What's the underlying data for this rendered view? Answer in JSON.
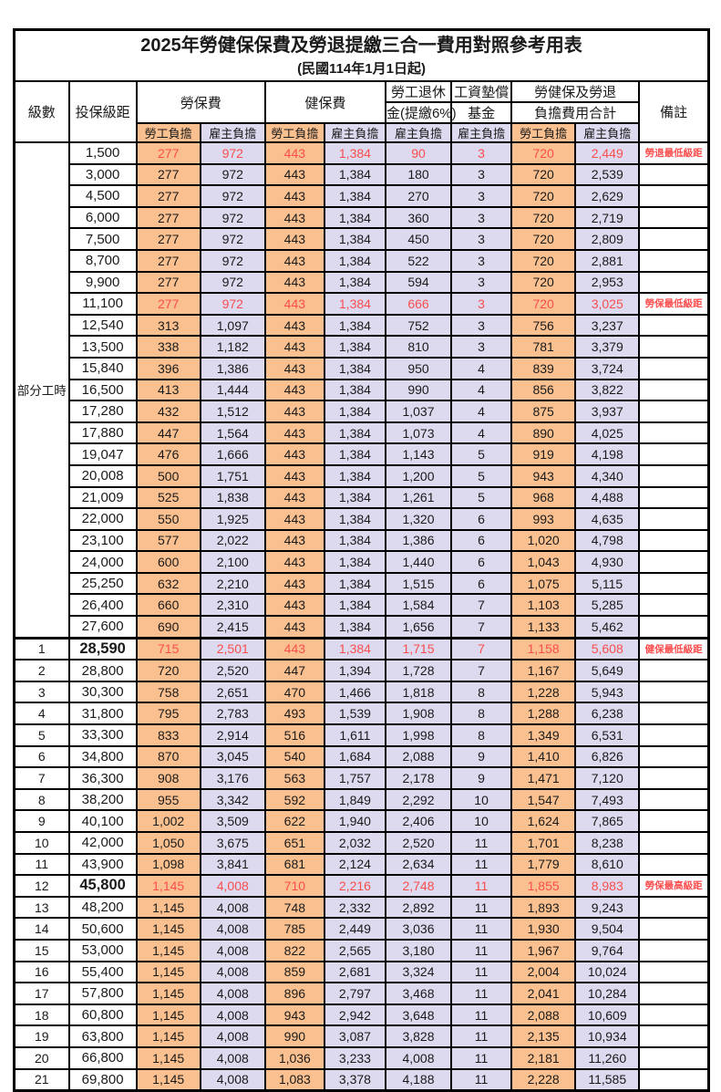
{
  "page": {
    "title": "2025年勞健保保費及勞退提繳三合一費用對照參考用表",
    "subtitle": "(民國114年1月1日起)"
  },
  "colors": {
    "employee_burden_bg": "#FAC08F",
    "employer_burden_bg": "#DDDAEF",
    "highlight_red": "#FA4E4E",
    "border_black": "#000000"
  },
  "header": {
    "level": "級數",
    "bracket": "投保級距",
    "labor_insurance": "勞保費",
    "health_insurance": "健保費",
    "pension_line1": "勞工退休",
    "pension_line2": "金(提繳6%)",
    "wage_fund_line1": "工資墊償",
    "wage_fund_line2": "基金",
    "total_line1": "勞健保及勞退",
    "total_line2": "負擔費用合計",
    "remark": "備註",
    "employee": "勞工負擔",
    "employer": "雇主負擔"
  },
  "part_time": {
    "label": "部分工時",
    "span": 23
  },
  "rows": [
    {
      "level": "",
      "bracket": "1,500",
      "values": [
        "277",
        "972",
        "443",
        "1,384",
        "90",
        "3",
        "720",
        "2,449"
      ],
      "remark": "勞退最低級距",
      "red": true,
      "big": false
    },
    {
      "level": "",
      "bracket": "3,000",
      "values": [
        "277",
        "972",
        "443",
        "1,384",
        "180",
        "3",
        "720",
        "2,539"
      ],
      "remark": "",
      "red": false,
      "big": false
    },
    {
      "level": "",
      "bracket": "4,500",
      "values": [
        "277",
        "972",
        "443",
        "1,384",
        "270",
        "3",
        "720",
        "2,629"
      ],
      "remark": "",
      "red": false,
      "big": false
    },
    {
      "level": "",
      "bracket": "6,000",
      "values": [
        "277",
        "972",
        "443",
        "1,384",
        "360",
        "3",
        "720",
        "2,719"
      ],
      "remark": "",
      "red": false,
      "big": false
    },
    {
      "level": "",
      "bracket": "7,500",
      "values": [
        "277",
        "972",
        "443",
        "1,384",
        "450",
        "3",
        "720",
        "2,809"
      ],
      "remark": "",
      "red": false,
      "big": false
    },
    {
      "level": "",
      "bracket": "8,700",
      "values": [
        "277",
        "972",
        "443",
        "1,384",
        "522",
        "3",
        "720",
        "2,881"
      ],
      "remark": "",
      "red": false,
      "big": false
    },
    {
      "level": "",
      "bracket": "9,900",
      "values": [
        "277",
        "972",
        "443",
        "1,384",
        "594",
        "3",
        "720",
        "2,953"
      ],
      "remark": "",
      "red": false,
      "big": false
    },
    {
      "level": "",
      "bracket": "11,100",
      "values": [
        "277",
        "972",
        "443",
        "1,384",
        "666",
        "3",
        "720",
        "3,025"
      ],
      "remark": "勞保最低級距",
      "red": true,
      "big": false
    },
    {
      "level": "",
      "bracket": "12,540",
      "values": [
        "313",
        "1,097",
        "443",
        "1,384",
        "752",
        "3",
        "756",
        "3,237"
      ],
      "remark": "",
      "red": false,
      "big": false
    },
    {
      "level": "",
      "bracket": "13,500",
      "values": [
        "338",
        "1,182",
        "443",
        "1,384",
        "810",
        "3",
        "781",
        "3,379"
      ],
      "remark": "",
      "red": false,
      "big": false
    },
    {
      "level": "",
      "bracket": "15,840",
      "values": [
        "396",
        "1,386",
        "443",
        "1,384",
        "950",
        "4",
        "839",
        "3,724"
      ],
      "remark": "",
      "red": false,
      "big": false
    },
    {
      "level": "",
      "bracket": "16,500",
      "values": [
        "413",
        "1,444",
        "443",
        "1,384",
        "990",
        "4",
        "856",
        "3,822"
      ],
      "remark": "",
      "red": false,
      "big": false
    },
    {
      "level": "",
      "bracket": "17,280",
      "values": [
        "432",
        "1,512",
        "443",
        "1,384",
        "1,037",
        "4",
        "875",
        "3,937"
      ],
      "remark": "",
      "red": false,
      "big": false
    },
    {
      "level": "",
      "bracket": "17,880",
      "values": [
        "447",
        "1,564",
        "443",
        "1,384",
        "1,073",
        "4",
        "890",
        "4,025"
      ],
      "remark": "",
      "red": false,
      "big": false
    },
    {
      "level": "",
      "bracket": "19,047",
      "values": [
        "476",
        "1,666",
        "443",
        "1,384",
        "1,143",
        "5",
        "919",
        "4,198"
      ],
      "remark": "",
      "red": false,
      "big": false
    },
    {
      "level": "",
      "bracket": "20,008",
      "values": [
        "500",
        "1,751",
        "443",
        "1,384",
        "1,200",
        "5",
        "943",
        "4,340"
      ],
      "remark": "",
      "red": false,
      "big": false
    },
    {
      "level": "",
      "bracket": "21,009",
      "values": [
        "525",
        "1,838",
        "443",
        "1,384",
        "1,261",
        "5",
        "968",
        "4,488"
      ],
      "remark": "",
      "red": false,
      "big": false
    },
    {
      "level": "",
      "bracket": "22,000",
      "values": [
        "550",
        "1,925",
        "443",
        "1,384",
        "1,320",
        "6",
        "993",
        "4,635"
      ],
      "remark": "",
      "red": false,
      "big": false
    },
    {
      "level": "",
      "bracket": "23,100",
      "values": [
        "577",
        "2,022",
        "443",
        "1,384",
        "1,386",
        "6",
        "1,020",
        "4,798"
      ],
      "remark": "",
      "red": false,
      "big": false
    },
    {
      "level": "",
      "bracket": "24,000",
      "values": [
        "600",
        "2,100",
        "443",
        "1,384",
        "1,440",
        "6",
        "1,043",
        "4,930"
      ],
      "remark": "",
      "red": false,
      "big": false
    },
    {
      "level": "",
      "bracket": "25,250",
      "values": [
        "632",
        "2,210",
        "443",
        "1,384",
        "1,515",
        "6",
        "1,075",
        "5,115"
      ],
      "remark": "",
      "red": false,
      "big": false
    },
    {
      "level": "",
      "bracket": "26,400",
      "values": [
        "660",
        "2,310",
        "443",
        "1,384",
        "1,584",
        "7",
        "1,103",
        "5,285"
      ],
      "remark": "",
      "red": false,
      "big": false
    },
    {
      "level": "",
      "bracket": "27,600",
      "values": [
        "690",
        "2,415",
        "443",
        "1,384",
        "1,656",
        "7",
        "1,133",
        "5,462"
      ],
      "remark": "",
      "red": false,
      "big": false
    },
    {
      "level": "1",
      "bracket": "28,590",
      "values": [
        "715",
        "2,501",
        "443",
        "1,384",
        "1,715",
        "7",
        "1,158",
        "5,608"
      ],
      "remark": "健保最低級距",
      "red": true,
      "big": true
    },
    {
      "level": "2",
      "bracket": "28,800",
      "values": [
        "720",
        "2,520",
        "447",
        "1,394",
        "1,728",
        "7",
        "1,167",
        "5,649"
      ],
      "remark": "",
      "red": false,
      "big": false
    },
    {
      "level": "3",
      "bracket": "30,300",
      "values": [
        "758",
        "2,651",
        "470",
        "1,466",
        "1,818",
        "8",
        "1,228",
        "5,943"
      ],
      "remark": "",
      "red": false,
      "big": false
    },
    {
      "level": "4",
      "bracket": "31,800",
      "values": [
        "795",
        "2,783",
        "493",
        "1,539",
        "1,908",
        "8",
        "1,288",
        "6,238"
      ],
      "remark": "",
      "red": false,
      "big": false
    },
    {
      "level": "5",
      "bracket": "33,300",
      "values": [
        "833",
        "2,914",
        "516",
        "1,611",
        "1,998",
        "8",
        "1,349",
        "6,531"
      ],
      "remark": "",
      "red": false,
      "big": false
    },
    {
      "level": "6",
      "bracket": "34,800",
      "values": [
        "870",
        "3,045",
        "540",
        "1,684",
        "2,088",
        "9",
        "1,410",
        "6,826"
      ],
      "remark": "",
      "red": false,
      "big": false
    },
    {
      "level": "7",
      "bracket": "36,300",
      "values": [
        "908",
        "3,176",
        "563",
        "1,757",
        "2,178",
        "9",
        "1,471",
        "7,120"
      ],
      "remark": "",
      "red": false,
      "big": false
    },
    {
      "level": "8",
      "bracket": "38,200",
      "values": [
        "955",
        "3,342",
        "592",
        "1,849",
        "2,292",
        "10",
        "1,547",
        "7,493"
      ],
      "remark": "",
      "red": false,
      "big": false
    },
    {
      "level": "9",
      "bracket": "40,100",
      "values": [
        "1,002",
        "3,509",
        "622",
        "1,940",
        "2,406",
        "10",
        "1,624",
        "7,865"
      ],
      "remark": "",
      "red": false,
      "big": false
    },
    {
      "level": "10",
      "bracket": "42,000",
      "values": [
        "1,050",
        "3,675",
        "651",
        "2,032",
        "2,520",
        "11",
        "1,701",
        "8,238"
      ],
      "remark": "",
      "red": false,
      "big": false
    },
    {
      "level": "11",
      "bracket": "43,900",
      "values": [
        "1,098",
        "3,841",
        "681",
        "2,124",
        "2,634",
        "11",
        "1,779",
        "8,610"
      ],
      "remark": "",
      "red": false,
      "big": false
    },
    {
      "level": "12",
      "bracket": "45,800",
      "values": [
        "1,145",
        "4,008",
        "710",
        "2,216",
        "2,748",
        "11",
        "1,855",
        "8,983"
      ],
      "remark": "勞保最高級距",
      "red": true,
      "big": true
    },
    {
      "level": "13",
      "bracket": "48,200",
      "values": [
        "1,145",
        "4,008",
        "748",
        "2,332",
        "2,892",
        "11",
        "1,893",
        "9,243"
      ],
      "remark": "",
      "red": false,
      "big": false
    },
    {
      "level": "14",
      "bracket": "50,600",
      "values": [
        "1,145",
        "4,008",
        "785",
        "2,449",
        "3,036",
        "11",
        "1,930",
        "9,504"
      ],
      "remark": "",
      "red": false,
      "big": false
    },
    {
      "level": "15",
      "bracket": "53,000",
      "values": [
        "1,145",
        "4,008",
        "822",
        "2,565",
        "3,180",
        "11",
        "1,967",
        "9,764"
      ],
      "remark": "",
      "red": false,
      "big": false
    },
    {
      "level": "16",
      "bracket": "55,400",
      "values": [
        "1,145",
        "4,008",
        "859",
        "2,681",
        "3,324",
        "11",
        "2,004",
        "10,024"
      ],
      "remark": "",
      "red": false,
      "big": false
    },
    {
      "level": "17",
      "bracket": "57,800",
      "values": [
        "1,145",
        "4,008",
        "896",
        "2,797",
        "3,468",
        "11",
        "2,041",
        "10,284"
      ],
      "remark": "",
      "red": false,
      "big": false
    },
    {
      "level": "18",
      "bracket": "60,800",
      "values": [
        "1,145",
        "4,008",
        "943",
        "2,942",
        "3,648",
        "11",
        "2,088",
        "10,609"
      ],
      "remark": "",
      "red": false,
      "big": false
    },
    {
      "level": "19",
      "bracket": "63,800",
      "values": [
        "1,145",
        "4,008",
        "990",
        "3,087",
        "3,828",
        "11",
        "2,135",
        "10,934"
      ],
      "remark": "",
      "red": false,
      "big": false
    },
    {
      "level": "20",
      "bracket": "66,800",
      "values": [
        "1,145",
        "4,008",
        "1,036",
        "3,233",
        "4,008",
        "11",
        "2,181",
        "11,260"
      ],
      "remark": "",
      "red": false,
      "big": false
    },
    {
      "level": "21",
      "bracket": "69,800",
      "values": [
        "1,145",
        "4,008",
        "1,083",
        "3,378",
        "4,188",
        "11",
        "2,228",
        "11,585"
      ],
      "remark": "",
      "red": false,
      "big": false
    }
  ]
}
